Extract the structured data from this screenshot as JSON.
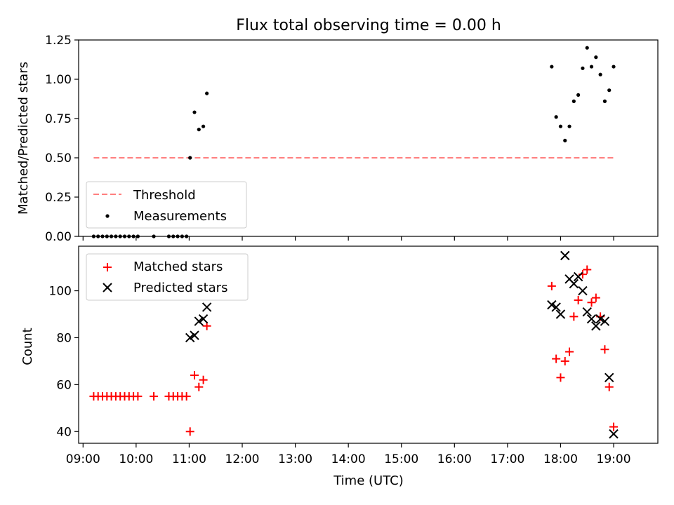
{
  "figure": {
    "title": "Flux total observing time = 0.00 h"
  },
  "colors": {
    "threshold": "#ff7f7f",
    "measurements": "#000000",
    "matched": "#ff0000",
    "predicted": "#000000",
    "axis": "#000000"
  },
  "chart_data": [
    {
      "type": "scatter",
      "title": "Flux total observing time = 0.00 h",
      "xlabel": "",
      "ylabel": "Matched/Predicted stars",
      "xlim": [
        "08:55",
        "19:50"
      ],
      "ylim": [
        0,
        1.25
      ],
      "yticks": [
        "0.00",
        "0.25",
        "0.50",
        "0.75",
        "1.00",
        "1.25"
      ],
      "legend": {
        "placement": "lower-left",
        "entries": [
          "Threshold",
          "Measurements"
        ]
      },
      "series": [
        {
          "name": "Threshold",
          "kind": "dashed-line",
          "x": [
            "09:12",
            "19:00"
          ],
          "y": [
            0.5,
            0.5
          ]
        },
        {
          "name": "Measurements",
          "kind": "points",
          "x": [
            "09:12",
            "09:17",
            "09:22",
            "09:27",
            "09:32",
            "09:37",
            "09:42",
            "09:47",
            "09:52",
            "09:57",
            "10:02",
            "10:20",
            "10:37",
            "10:42",
            "10:47",
            "10:52",
            "10:57",
            "11:01",
            "11:06",
            "11:11",
            "11:16",
            "11:20",
            "17:50",
            "17:55",
            "18:00",
            "18:05",
            "18:10",
            "18:15",
            "18:20",
            "18:25",
            "18:30",
            "18:35",
            "18:40",
            "18:45",
            "18:50",
            "18:55",
            "19:00"
          ],
          "y": [
            0,
            0,
            0,
            0,
            0,
            0,
            0,
            0,
            0,
            0,
            0,
            0,
            0,
            0,
            0,
            0,
            0,
            0.5,
            0.79,
            0.68,
            0.7,
            0.91,
            1.08,
            0.76,
            0.7,
            0.61,
            0.7,
            0.86,
            0.9,
            1.07,
            1.2,
            1.08,
            1.14,
            1.03,
            0.86,
            0.93,
            1.08
          ]
        }
      ]
    },
    {
      "type": "scatter",
      "xlabel": "Time (UTC)",
      "ylabel": "Count",
      "xlim": [
        "08:55",
        "19:50"
      ],
      "ylim": [
        35,
        119
      ],
      "yticks": [
        "40",
        "60",
        "80",
        "100"
      ],
      "xticks": [
        "09:00",
        "10:00",
        "11:00",
        "12:00",
        "13:00",
        "14:00",
        "15:00",
        "16:00",
        "17:00",
        "18:00",
        "19:00"
      ],
      "legend": {
        "placement": "upper-left",
        "entries": [
          "Matched stars",
          "Predicted stars"
        ]
      },
      "series": [
        {
          "name": "Matched stars",
          "marker": "+",
          "x": [
            "09:12",
            "09:17",
            "09:22",
            "09:27",
            "09:32",
            "09:37",
            "09:42",
            "09:47",
            "09:52",
            "09:57",
            "10:02",
            "10:20",
            "10:37",
            "10:42",
            "10:47",
            "10:52",
            "10:57",
            "11:01",
            "11:06",
            "11:11",
            "11:16",
            "11:20",
            "17:50",
            "17:55",
            "18:00",
            "18:05",
            "18:10",
            "18:15",
            "18:20",
            "18:25",
            "18:30",
            "18:35",
            "18:40",
            "18:45",
            "18:50",
            "18:55",
            "19:00"
          ],
          "y": [
            55,
            55,
            55,
            55,
            55,
            55,
            55,
            55,
            55,
            55,
            55,
            55,
            55,
            55,
            55,
            55,
            55,
            40,
            64,
            59,
            62,
            85,
            102,
            71,
            63,
            70,
            74,
            89,
            96,
            107,
            109,
            95,
            97,
            89,
            75,
            59,
            42
          ]
        },
        {
          "name": "Predicted stars",
          "marker": "x",
          "x": [
            "11:01",
            "11:06",
            "11:11",
            "11:16",
            "11:20",
            "17:50",
            "17:55",
            "18:00",
            "18:05",
            "18:10",
            "18:15",
            "18:20",
            "18:25",
            "18:30",
            "18:35",
            "18:40",
            "18:45",
            "18:50",
            "18:55",
            "19:00"
          ],
          "y": [
            80,
            81,
            87,
            88,
            93,
            94,
            93,
            90,
            115,
            105,
            103,
            106,
            100,
            91,
            88,
            85,
            88,
            87,
            63,
            39
          ]
        }
      ]
    }
  ]
}
